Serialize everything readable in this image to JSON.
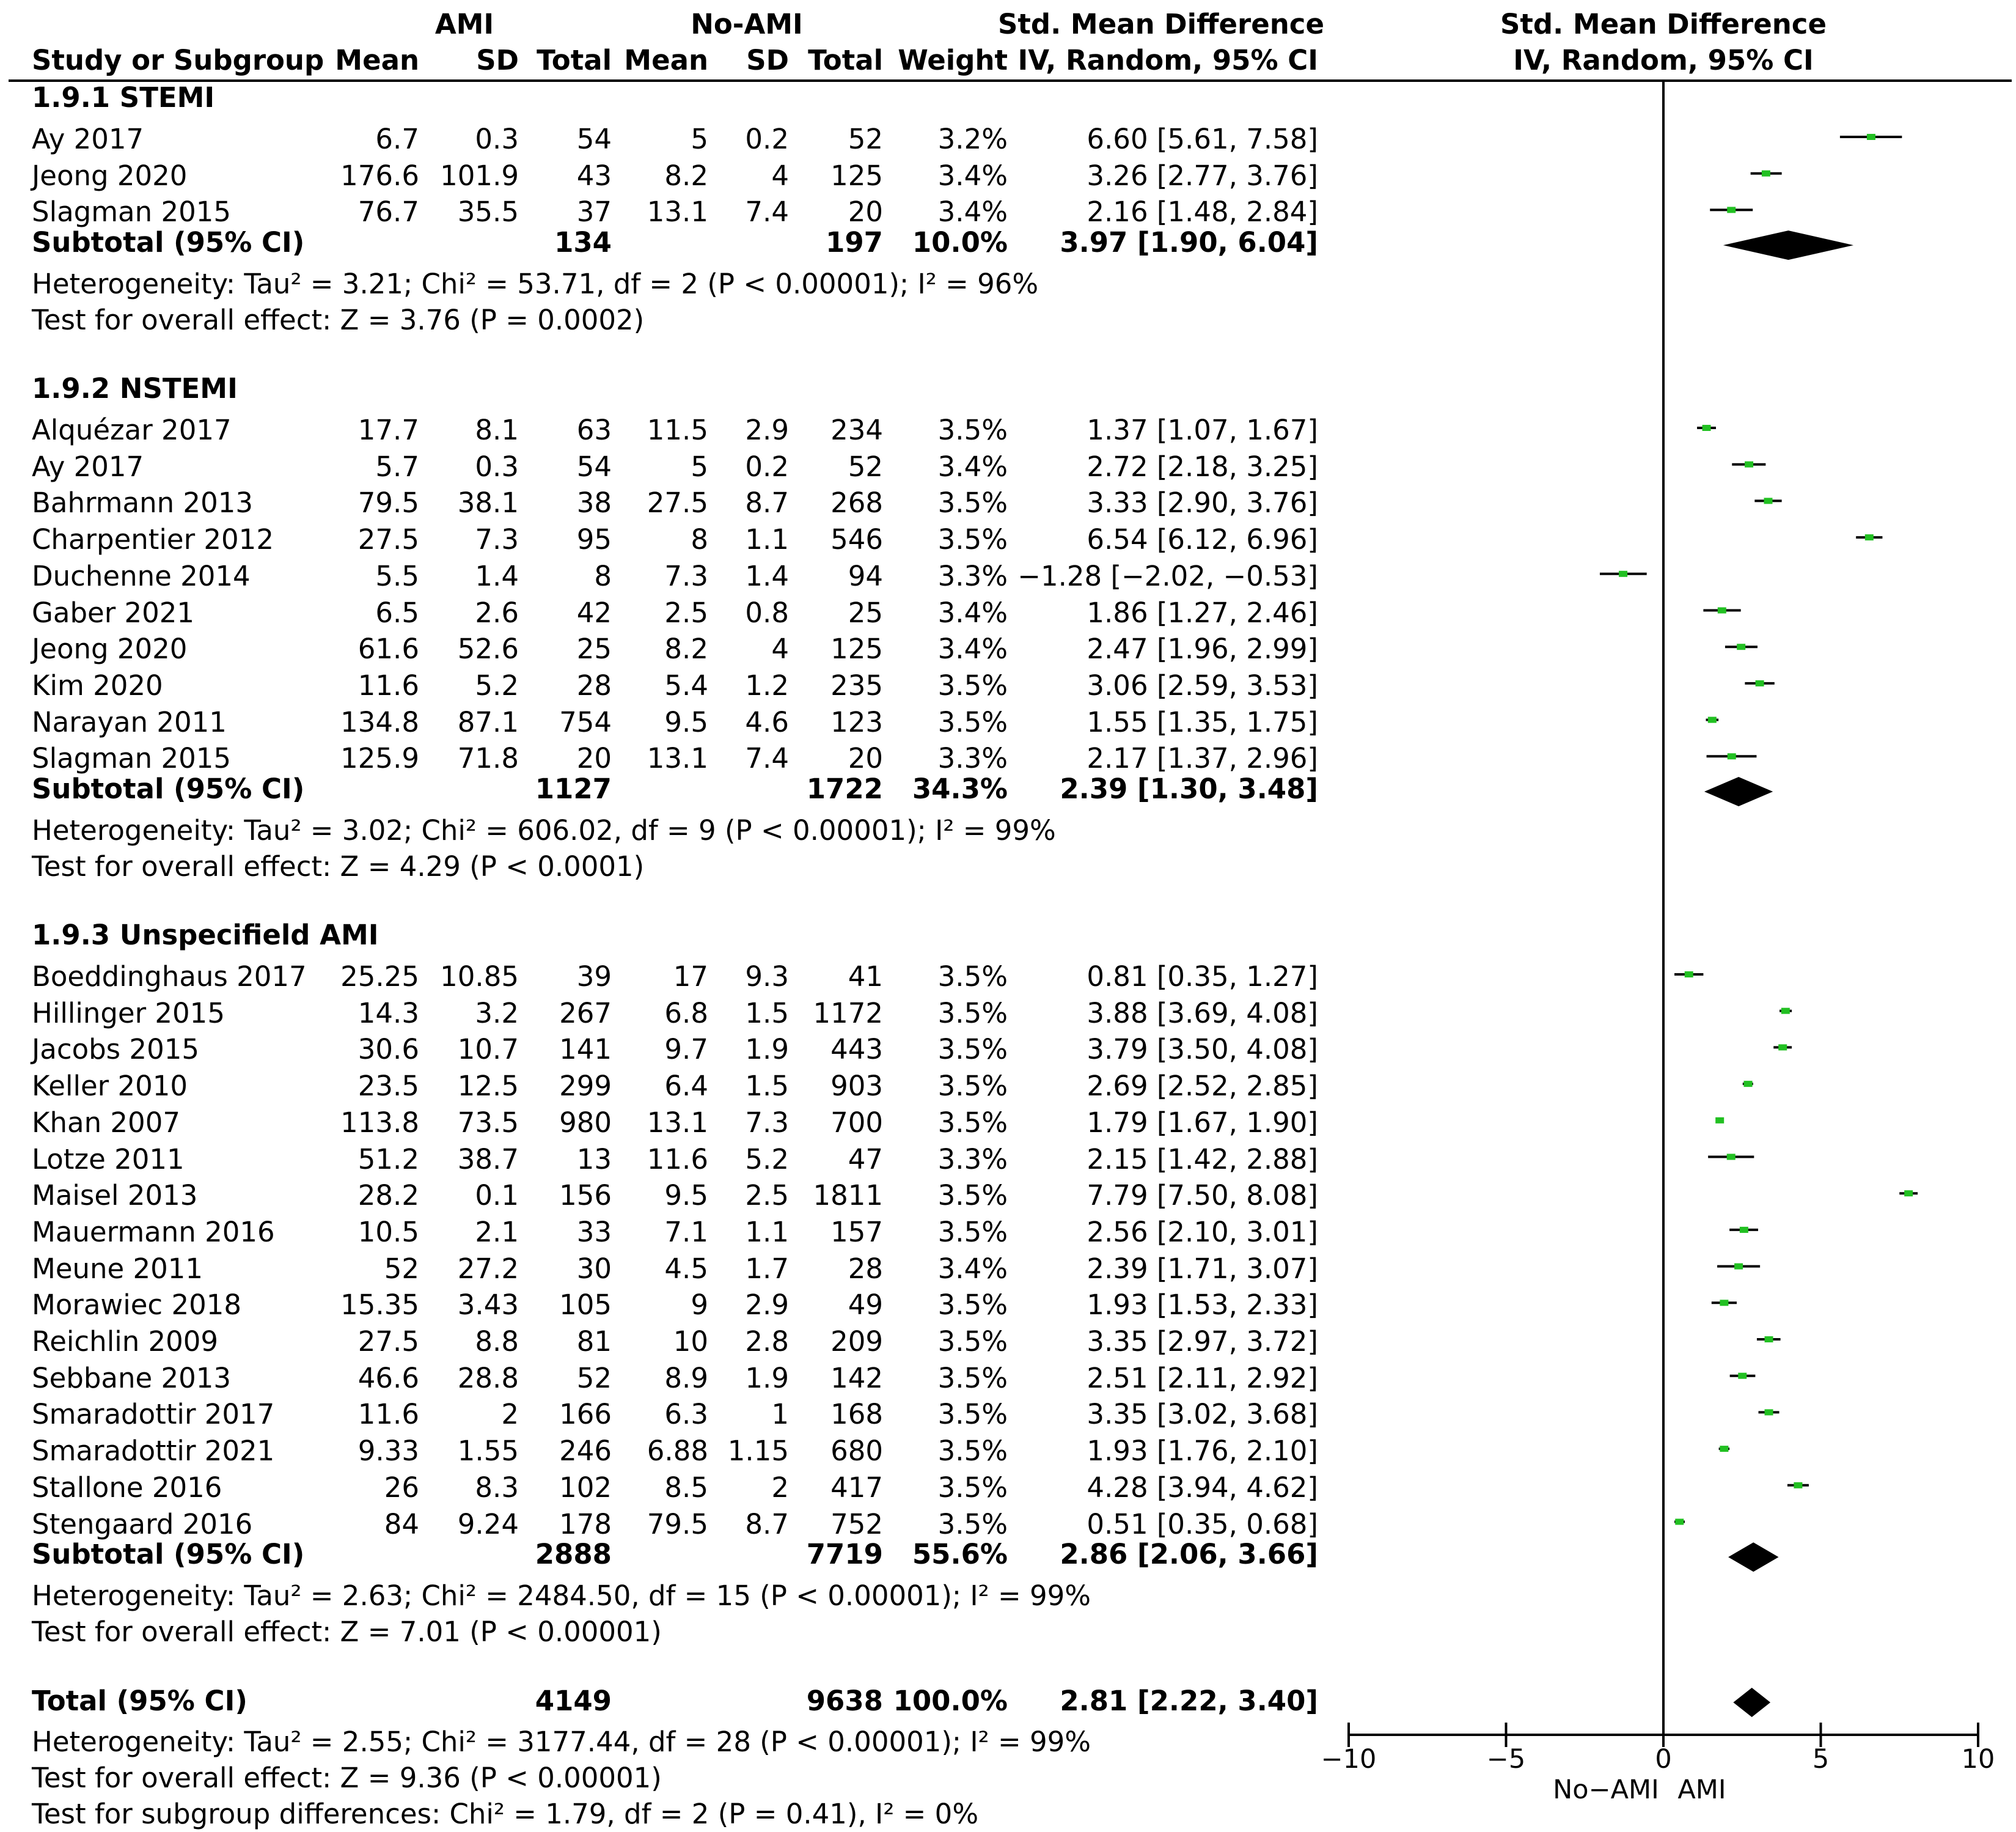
{
  "chart_data": {
    "type": "forest",
    "title": "Std. Mean Difference, IV, Random, 95% CI",
    "header": {
      "group1": "AMI",
      "group2": "No-AMI",
      "smd_group": "Std. Mean Difference",
      "smd_method": "IV, Random, 95% CI",
      "plot_group": "Std. Mean Difference",
      "plot_method": "IV, Random, 95% CI",
      "study": "Study or Subgroup",
      "mean": "Mean",
      "sd": "SD",
      "total": "Total",
      "weight": "Weight"
    },
    "subgroups": [
      {
        "title": "1.9.1 STEMI",
        "studies": [
          {
            "name": "Ay 2017",
            "m1": "6.7",
            "sd1": "0.3",
            "n1": "54",
            "m2": "5",
            "sd2": "0.2",
            "n2": "52",
            "weight": "3.2%",
            "ci": "6.60 [5.61, 7.58]",
            "est": 6.6,
            "lo": 5.61,
            "hi": 7.58
          },
          {
            "name": "Jeong 2020",
            "m1": "176.6",
            "sd1": "101.9",
            "n1": "43",
            "m2": "8.2",
            "sd2": "4",
            "n2": "125",
            "weight": "3.4%",
            "ci": "3.26 [2.77, 3.76]",
            "est": 3.26,
            "lo": 2.77,
            "hi": 3.76
          },
          {
            "name": "Slagman 2015",
            "m1": "76.7",
            "sd1": "35.5",
            "n1": "37",
            "m2": "13.1",
            "sd2": "7.4",
            "n2": "20",
            "weight": "3.4%",
            "ci": "2.16 [1.48, 2.84]",
            "est": 2.16,
            "lo": 1.48,
            "hi": 2.84
          }
        ],
        "subtotal": {
          "label": "Subtotal (95% CI)",
          "n1": "134",
          "n2": "197",
          "weight": "10.0%",
          "ci": "3.97 [1.90, 6.04]",
          "est": 3.97,
          "lo": 1.9,
          "hi": 6.04
        },
        "heterogeneity": "Heterogeneity: Tau² = 3.21; Chi² = 53.71, df = 2 (P < 0.00001); I² = 96%",
        "overall": "Test for overall effect: Z = 3.76 (P = 0.0002)"
      },
      {
        "title": "1.9.2 NSTEMI",
        "studies": [
          {
            "name": "Alquézar 2017",
            "m1": "17.7",
            "sd1": "8.1",
            "n1": "63",
            "m2": "11.5",
            "sd2": "2.9",
            "n2": "234",
            "weight": "3.5%",
            "ci": "1.37 [1.07, 1.67]",
            "est": 1.37,
            "lo": 1.07,
            "hi": 1.67
          },
          {
            "name": "Ay 2017",
            "m1": "5.7",
            "sd1": "0.3",
            "n1": "54",
            "m2": "5",
            "sd2": "0.2",
            "n2": "52",
            "weight": "3.4%",
            "ci": "2.72 [2.18, 3.25]",
            "est": 2.72,
            "lo": 2.18,
            "hi": 3.25
          },
          {
            "name": "Bahrmann 2013",
            "m1": "79.5",
            "sd1": "38.1",
            "n1": "38",
            "m2": "27.5",
            "sd2": "8.7",
            "n2": "268",
            "weight": "3.5%",
            "ci": "3.33 [2.90, 3.76]",
            "est": 3.33,
            "lo": 2.9,
            "hi": 3.76
          },
          {
            "name": "Charpentier 2012",
            "m1": "27.5",
            "sd1": "7.3",
            "n1": "95",
            "m2": "8",
            "sd2": "1.1",
            "n2": "546",
            "weight": "3.5%",
            "ci": "6.54 [6.12, 6.96]",
            "est": 6.54,
            "lo": 6.12,
            "hi": 6.96
          },
          {
            "name": "Duchenne 2014",
            "m1": "5.5",
            "sd1": "1.4",
            "n1": "8",
            "m2": "7.3",
            "sd2": "1.4",
            "n2": "94",
            "weight": "3.3%",
            "ci": "−1.28 [−2.02, −0.53]",
            "est": -1.28,
            "lo": -2.02,
            "hi": -0.53
          },
          {
            "name": "Gaber 2021",
            "m1": "6.5",
            "sd1": "2.6",
            "n1": "42",
            "m2": "2.5",
            "sd2": "0.8",
            "n2": "25",
            "weight": "3.4%",
            "ci": "1.86 [1.27, 2.46]",
            "est": 1.86,
            "lo": 1.27,
            "hi": 2.46
          },
          {
            "name": "Jeong 2020",
            "m1": "61.6",
            "sd1": "52.6",
            "n1": "25",
            "m2": "8.2",
            "sd2": "4",
            "n2": "125",
            "weight": "3.4%",
            "ci": "2.47 [1.96, 2.99]",
            "est": 2.47,
            "lo": 1.96,
            "hi": 2.99
          },
          {
            "name": "Kim 2020",
            "m1": "11.6",
            "sd1": "5.2",
            "n1": "28",
            "m2": "5.4",
            "sd2": "1.2",
            "n2": "235",
            "weight": "3.5%",
            "ci": "3.06 [2.59, 3.53]",
            "est": 3.06,
            "lo": 2.59,
            "hi": 3.53
          },
          {
            "name": "Narayan 2011",
            "m1": "134.8",
            "sd1": "87.1",
            "n1": "754",
            "m2": "9.5",
            "sd2": "4.6",
            "n2": "123",
            "weight": "3.5%",
            "ci": "1.55 [1.35, 1.75]",
            "est": 1.55,
            "lo": 1.35,
            "hi": 1.75
          },
          {
            "name": "Slagman 2015",
            "m1": "125.9",
            "sd1": "71.8",
            "n1": "20",
            "m2": "13.1",
            "sd2": "7.4",
            "n2": "20",
            "weight": "3.3%",
            "ci": "2.17 [1.37, 2.96]",
            "est": 2.17,
            "lo": 1.37,
            "hi": 2.96
          }
        ],
        "subtotal": {
          "label": "Subtotal (95% CI)",
          "n1": "1127",
          "n2": "1722",
          "weight": "34.3%",
          "ci": "2.39 [1.30, 3.48]",
          "est": 2.39,
          "lo": 1.3,
          "hi": 3.48
        },
        "heterogeneity": "Heterogeneity: Tau² = 3.02; Chi² = 606.02, df = 9 (P < 0.00001); I² = 99%",
        "overall": "Test for overall effect: Z = 4.29 (P < 0.0001)"
      },
      {
        "title": "1.9.3 Unspecifield AMI",
        "studies": [
          {
            "name": "Boeddinghaus 2017",
            "m1": "25.25",
            "sd1": "10.85",
            "n1": "39",
            "m2": "17",
            "sd2": "9.3",
            "n2": "41",
            "weight": "3.5%",
            "ci": "0.81 [0.35, 1.27]",
            "est": 0.81,
            "lo": 0.35,
            "hi": 1.27
          },
          {
            "name": "Hillinger 2015",
            "m1": "14.3",
            "sd1": "3.2",
            "n1": "267",
            "m2": "6.8",
            "sd2": "1.5",
            "n2": "1172",
            "weight": "3.5%",
            "ci": "3.88 [3.69, 4.08]",
            "est": 3.88,
            "lo": 3.69,
            "hi": 4.08
          },
          {
            "name": "Jacobs 2015",
            "m1": "30.6",
            "sd1": "10.7",
            "n1": "141",
            "m2": "9.7",
            "sd2": "1.9",
            "n2": "443",
            "weight": "3.5%",
            "ci": "3.79 [3.50, 4.08]",
            "est": 3.79,
            "lo": 3.5,
            "hi": 4.08
          },
          {
            "name": "Keller 2010",
            "m1": "23.5",
            "sd1": "12.5",
            "n1": "299",
            "m2": "6.4",
            "sd2": "1.5",
            "n2": "903",
            "weight": "3.5%",
            "ci": "2.69 [2.52, 2.85]",
            "est": 2.69,
            "lo": 2.52,
            "hi": 2.85
          },
          {
            "name": "Khan 2007",
            "m1": "113.8",
            "sd1": "73.5",
            "n1": "980",
            "m2": "13.1",
            "sd2": "7.3",
            "n2": "700",
            "weight": "3.5%",
            "ci": "1.79 [1.67, 1.90]",
            "est": 1.79,
            "lo": 1.67,
            "hi": 1.9
          },
          {
            "name": "Lotze 2011",
            "m1": "51.2",
            "sd1": "38.7",
            "n1": "13",
            "m2": "11.6",
            "sd2": "5.2",
            "n2": "47",
            "weight": "3.3%",
            "ci": "2.15 [1.42, 2.88]",
            "est": 2.15,
            "lo": 1.42,
            "hi": 2.88
          },
          {
            "name": "Maisel 2013",
            "m1": "28.2",
            "sd1": "0.1",
            "n1": "156",
            "m2": "9.5",
            "sd2": "2.5",
            "n2": "1811",
            "weight": "3.5%",
            "ci": "7.79 [7.50, 8.08]",
            "est": 7.79,
            "lo": 7.5,
            "hi": 8.08
          },
          {
            "name": "Mauermann 2016",
            "m1": "10.5",
            "sd1": "2.1",
            "n1": "33",
            "m2": "7.1",
            "sd2": "1.1",
            "n2": "157",
            "weight": "3.5%",
            "ci": "2.56 [2.10, 3.01]",
            "est": 2.56,
            "lo": 2.1,
            "hi": 3.01
          },
          {
            "name": "Meune 2011",
            "m1": "52",
            "sd1": "27.2",
            "n1": "30",
            "m2": "4.5",
            "sd2": "1.7",
            "n2": "28",
            "weight": "3.4%",
            "ci": "2.39 [1.71, 3.07]",
            "est": 2.39,
            "lo": 1.71,
            "hi": 3.07
          },
          {
            "name": "Morawiec 2018",
            "m1": "15.35",
            "sd1": "3.43",
            "n1": "105",
            "m2": "9",
            "sd2": "2.9",
            "n2": "49",
            "weight": "3.5%",
            "ci": "1.93 [1.53, 2.33]",
            "est": 1.93,
            "lo": 1.53,
            "hi": 2.33
          },
          {
            "name": "Reichlin 2009",
            "m1": "27.5",
            "sd1": "8.8",
            "n1": "81",
            "m2": "10",
            "sd2": "2.8",
            "n2": "209",
            "weight": "3.5%",
            "ci": "3.35 [2.97, 3.72]",
            "est": 3.35,
            "lo": 2.97,
            "hi": 3.72
          },
          {
            "name": "Sebbane 2013",
            "m1": "46.6",
            "sd1": "28.8",
            "n1": "52",
            "m2": "8.9",
            "sd2": "1.9",
            "n2": "142",
            "weight": "3.5%",
            "ci": "2.51 [2.11, 2.92]",
            "est": 2.51,
            "lo": 2.11,
            "hi": 2.92
          },
          {
            "name": "Smaradottir 2017",
            "m1": "11.6",
            "sd1": "2",
            "n1": "166",
            "m2": "6.3",
            "sd2": "1",
            "n2": "168",
            "weight": "3.5%",
            "ci": "3.35 [3.02, 3.68]",
            "est": 3.35,
            "lo": 3.02,
            "hi": 3.68
          },
          {
            "name": "Smaradottir 2021",
            "m1": "9.33",
            "sd1": "1.55",
            "n1": "246",
            "m2": "6.88",
            "sd2": "1.15",
            "n2": "680",
            "weight": "3.5%",
            "ci": "1.93 [1.76, 2.10]",
            "est": 1.93,
            "lo": 1.76,
            "hi": 2.1
          },
          {
            "name": "Stallone 2016",
            "m1": "26",
            "sd1": "8.3",
            "n1": "102",
            "m2": "8.5",
            "sd2": "2",
            "n2": "417",
            "weight": "3.5%",
            "ci": "4.28 [3.94, 4.62]",
            "est": 4.28,
            "lo": 3.94,
            "hi": 4.62
          },
          {
            "name": "Stengaard 2016",
            "m1": "84",
            "sd1": "9.24",
            "n1": "178",
            "m2": "79.5",
            "sd2": "8.7",
            "n2": "752",
            "weight": "3.5%",
            "ci": "0.51 [0.35, 0.68]",
            "est": 0.51,
            "lo": 0.35,
            "hi": 0.68
          }
        ],
        "subtotal": {
          "label": "Subtotal (95% CI)",
          "n1": "2888",
          "n2": "7719",
          "weight": "55.6%",
          "ci": "2.86 [2.06, 3.66]",
          "est": 2.86,
          "lo": 2.06,
          "hi": 3.66
        },
        "heterogeneity": "Heterogeneity: Tau² = 2.63; Chi² = 2484.50, df = 15 (P < 0.00001); I² = 99%",
        "overall": "Test for overall effect: Z = 7.01 (P < 0.00001)"
      }
    ],
    "total": {
      "label": "Total (95% CI)",
      "n1": "4149",
      "n2": "9638",
      "weight": "100.0%",
      "ci": "2.81 [2.22, 3.40]",
      "est": 2.81,
      "lo": 2.22,
      "hi": 3.4
    },
    "footer": {
      "heterogeneity": "Heterogeneity: Tau² = 2.55; Chi² = 3177.44, df = 28 (P < 0.00001); I² = 99%",
      "overall": "Test for overall effect: Z = 9.36 (P < 0.00001)",
      "subgroup_diff": "Test for subgroup differences: Chi² = 1.79, df = 2 (P = 0.41), I² = 0%"
    },
    "axis": {
      "xlim": [
        -10,
        10
      ],
      "ticks": [
        -10,
        -5,
        0,
        5,
        10
      ],
      "tick_labels": [
        "−10",
        "−5",
        "0",
        "5",
        "10"
      ],
      "left_label": "No−AMI",
      "right_label": "AMI"
    },
    "colors": {
      "marker": "#22c022",
      "line": "#000000",
      "diamond": "#000000"
    }
  }
}
